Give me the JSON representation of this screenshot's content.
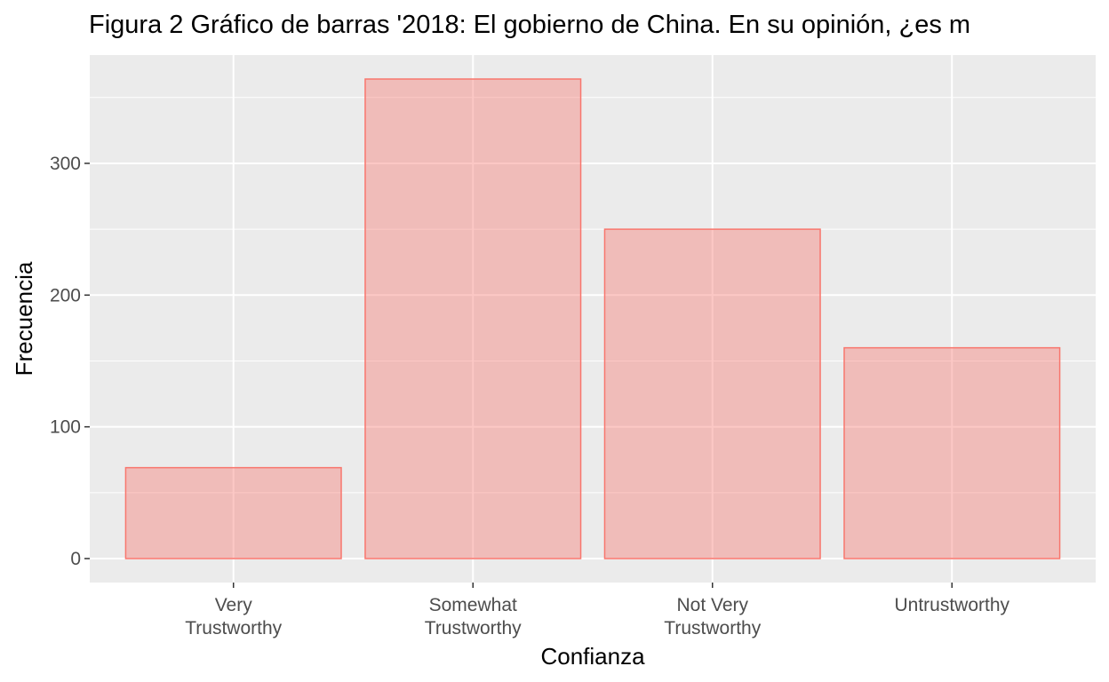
{
  "chart_data": {
    "type": "bar",
    "title": "Figura 2 Gráfico de barras '2018: El gobierno de China. En su opinión, ¿es m",
    "xlabel": "Confianza",
    "ylabel": "Frecuencia",
    "categories": [
      [
        "Very",
        "Trustworthy"
      ],
      [
        "Somewhat",
        "Trustworthy"
      ],
      [
        "Not Very",
        "Trustworthy"
      ],
      [
        "Untrustworthy"
      ]
    ],
    "values": [
      69,
      364,
      250,
      160
    ],
    "ylim": [
      -18.2,
      382.2
    ],
    "yticks": [
      0,
      100,
      200,
      300
    ],
    "ytick_labels": [
      "0",
      "100",
      "200",
      "300"
    ],
    "grid": true,
    "legend": "none",
    "colors": {
      "bar_fill": "#f8766d",
      "bar_fill_opacity": 0.4,
      "bar_stroke": "#f8766d",
      "panel_bg": "#ebebeb",
      "grid_major": "#ffffff"
    }
  }
}
